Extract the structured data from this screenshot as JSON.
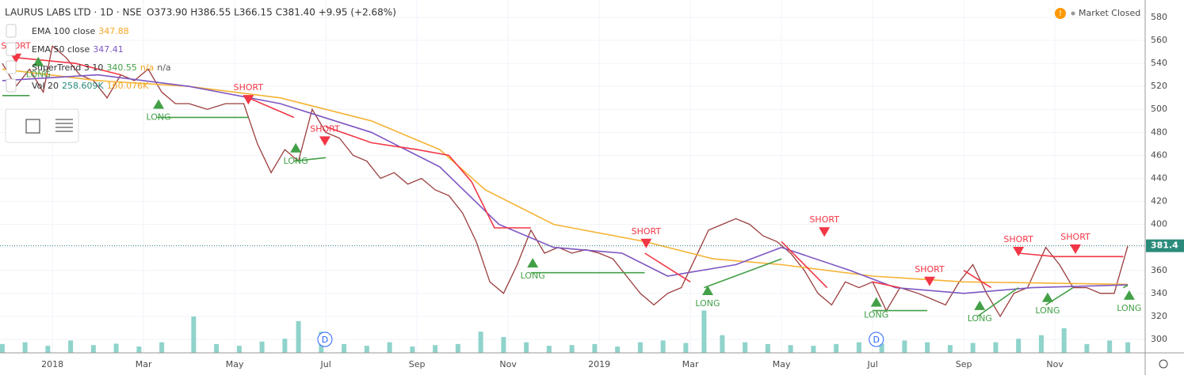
{
  "chart_data": {
    "type": "line",
    "title": "LAURUS LABS LTD · 1D · NSE",
    "subtitle": "O373.90 H386.55 L366.15 C381.40 +9.95 (+2.68%)",
    "status": "Market Closed",
    "last_price": 381.4,
    "xlim": [
      -1.15,
      23.98
    ],
    "xticks": [
      {
        "value": 0,
        "label": "2018"
      },
      {
        "value": 2,
        "label": "Mar"
      },
      {
        "value": 4,
        "label": "May"
      },
      {
        "value": 6,
        "label": "Jul"
      },
      {
        "value": 8,
        "label": "Sep"
      },
      {
        "value": 10,
        "label": "Nov"
      },
      {
        "value": 12,
        "label": "2019"
      },
      {
        "value": 14,
        "label": "Mar"
      },
      {
        "value": 16,
        "label": "May"
      },
      {
        "value": 18,
        "label": "Jul"
      },
      {
        "value": 20,
        "label": "Sep"
      },
      {
        "value": 22,
        "label": "Nov"
      }
    ],
    "ylim": [
      288.3,
      595.1
    ],
    "yticks": [
      300,
      320,
      340,
      360,
      380,
      400,
      420,
      440,
      460,
      480,
      500,
      520,
      540,
      560,
      580
    ],
    "y2lim": [
      0,
      10000
    ],
    "grid": true,
    "series": [
      {
        "name": "Close",
        "color": "#9b3d3d",
        "x": [
          -1.1,
          -0.8,
          -0.5,
          -0.2,
          0,
          0.3,
          0.6,
          0.9,
          1.2,
          1.5,
          1.8,
          2.1,
          2.4,
          2.7,
          3.0,
          3.4,
          3.8,
          4.2,
          4.5,
          4.8,
          5.1,
          5.4,
          5.7,
          6.0,
          6.3,
          6.6,
          6.9,
          7.2,
          7.5,
          7.8,
          8.1,
          8.4,
          8.7,
          9.0,
          9.3,
          9.6,
          9.9,
          10.2,
          10.5,
          10.8,
          11.1,
          11.4,
          11.7,
          12.0,
          12.3,
          12.6,
          12.9,
          13.2,
          13.5,
          13.8,
          14.1,
          14.4,
          14.7,
          15.0,
          15.3,
          15.6,
          15.9,
          16.2,
          16.5,
          16.8,
          17.1,
          17.4,
          17.7,
          18.0,
          18.3,
          18.6,
          19.0,
          19.3,
          19.6,
          19.9,
          20.2,
          20.5,
          20.8,
          21.1,
          21.4,
          21.8,
          22.1,
          22.4,
          22.7,
          23.0,
          23.3,
          23.6
        ],
        "values": [
          540,
          520,
          535,
          515,
          555,
          545,
          530,
          525,
          510,
          530,
          525,
          535,
          515,
          505,
          505,
          500,
          505,
          505,
          470,
          445,
          465,
          455,
          500,
          480,
          475,
          460,
          455,
          440,
          445,
          435,
          440,
          430,
          425,
          410,
          385,
          350,
          340,
          365,
          395,
          375,
          380,
          375,
          378,
          375,
          370,
          355,
          340,
          330,
          340,
          345,
          370,
          395,
          400,
          405,
          400,
          390,
          385,
          375,
          360,
          340,
          330,
          350,
          345,
          350,
          325,
          345,
          340,
          335,
          330,
          350,
          365,
          340,
          320,
          340,
          345,
          380,
          365,
          345,
          345,
          340,
          340,
          381.4
        ]
      },
      {
        "name": "EMA 100 close",
        "legend_value": 347.88,
        "color": "#f5b335",
        "x": [
          -1.1,
          1,
          3,
          5,
          7,
          8.5,
          9.5,
          11,
          13,
          14.5,
          16,
          18,
          20,
          23.6
        ],
        "values": [
          535,
          525,
          520,
          510,
          490,
          465,
          430,
          400,
          385,
          370,
          365,
          355,
          350,
          347.88
        ]
      },
      {
        "name": "EMA 50 close",
        "legend_value": 347.41,
        "color": "#7e57c2",
        "x": [
          -1.1,
          1,
          3,
          5,
          7,
          8.5,
          9.8,
          11,
          12.5,
          13.5,
          15,
          16,
          17.5,
          18.5,
          20,
          21.5,
          23.6
        ],
        "values": [
          525,
          530,
          520,
          505,
          480,
          450,
          400,
          380,
          375,
          355,
          365,
          380,
          360,
          345,
          340,
          345,
          347.41
        ]
      },
      {
        "name": "SuperTrend 3 10",
        "legend_value": 340.55,
        "legend_extra": "n/a",
        "legend_extra2": "n/a",
        "color": "#f23645",
        "x": [
          -0.8,
          0.5,
          1.5,
          null,
          4.3,
          5.3,
          null,
          6.0,
          7.0,
          8.0,
          8.7,
          9.2,
          9.7,
          10.5,
          null,
          13.0,
          14.0,
          null,
          16.0,
          17.0,
          null,
          18.0,
          18.6,
          null,
          20.0,
          20.6,
          null,
          21.2,
          22.0,
          22.5,
          23.5
        ],
        "values": [
          545,
          540,
          530,
          null,
          510,
          493,
          null,
          485,
          471,
          465,
          460,
          437,
          397,
          397,
          null,
          375,
          350,
          null,
          385,
          345,
          null,
          350,
          345,
          null,
          360,
          345,
          null,
          375,
          372,
          372,
          372
        ]
      },
      {
        "name": "SuperTrend long",
        "color": "#43a047",
        "x": [
          -1.1,
          -0.5,
          null,
          2.3,
          4.3,
          null,
          5.3,
          6.0,
          null,
          10.5,
          13.0,
          null,
          14.3,
          16.0,
          null,
          18.0,
          19.2,
          null,
          20.3,
          21.2,
          null,
          21.8,
          22.4,
          null,
          23.5,
          23.6
        ],
        "values": [
          512,
          512,
          null,
          493,
          493,
          null,
          455,
          458,
          null,
          358,
          358,
          null,
          345,
          370,
          null,
          325,
          325,
          null,
          320,
          345,
          null,
          330,
          345,
          null,
          345,
          347
        ]
      }
    ],
    "volume": {
      "name": "Vol 20",
      "legend_value": "258.609K",
      "legend_extra": "160.076K",
      "color": "#8fd3cb",
      "x": [
        -1.1,
        -0.6,
        -0.1,
        0.4,
        0.9,
        1.4,
        1.9,
        2.4,
        3.1,
        3.6,
        4.1,
        4.6,
        5.1,
        5.4,
        5.9,
        6.4,
        6.9,
        7.4,
        7.9,
        8.4,
        8.9,
        9.4,
        9.9,
        10.4,
        10.9,
        11.4,
        11.9,
        12.4,
        12.9,
        13.4,
        13.9,
        14.3,
        14.7,
        15.2,
        15.7,
        16.2,
        16.7,
        17.2,
        17.7,
        18.2,
        18.7,
        19.2,
        19.7,
        20.2,
        20.7,
        21.2,
        21.7,
        22.2,
        22.7,
        23.2,
        23.6
      ],
      "values": [
        250,
        300,
        200,
        350,
        220,
        260,
        180,
        300,
        1030,
        250,
        200,
        320,
        400,
        900,
        600,
        250,
        200,
        300,
        180,
        220,
        250,
        600,
        450,
        300,
        200,
        220,
        250,
        180,
        300,
        350,
        280,
        1200,
        500,
        300,
        250,
        220,
        200,
        250,
        300,
        260,
        350,
        300,
        220,
        280,
        300,
        400,
        500,
        700,
        250,
        350,
        300
      ]
    },
    "signals": [
      {
        "label": "SHORT",
        "x": -0.8,
        "value": 543
      },
      {
        "label": "LONG",
        "x": -0.31,
        "value": 543
      },
      {
        "label": "LONG",
        "x": 2.33,
        "value": 506
      },
      {
        "label": "SHORT",
        "x": 4.3,
        "value": 507
      },
      {
        "label": "LONG",
        "x": 5.34,
        "value": 468
      },
      {
        "label": "SHORT",
        "x": 5.98,
        "value": 471
      },
      {
        "label": "LONG",
        "x": 10.54,
        "value": 368
      },
      {
        "label": "SHORT",
        "x": 13.03,
        "value": 382
      },
      {
        "label": "LONG",
        "x": 14.38,
        "value": 344
      },
      {
        "label": "SHORT",
        "x": 16.94,
        "value": 392
      },
      {
        "label": "LONG",
        "x": 18.08,
        "value": 334
      },
      {
        "label": "SHORT",
        "x": 19.25,
        "value": 349
      },
      {
        "label": "LONG",
        "x": 20.35,
        "value": 331
      },
      {
        "label": "SHORT",
        "x": 21.2,
        "value": 375
      },
      {
        "label": "LONG",
        "x": 21.84,
        "value": 338
      },
      {
        "label": "SHORT",
        "x": 22.45,
        "value": 377
      },
      {
        "label": "LONG",
        "x": 23.63,
        "value": 340
      }
    ],
    "markers": [
      {
        "label": "D",
        "x": 5.98
      },
      {
        "label": "D",
        "x": 18.08
      }
    ]
  }
}
